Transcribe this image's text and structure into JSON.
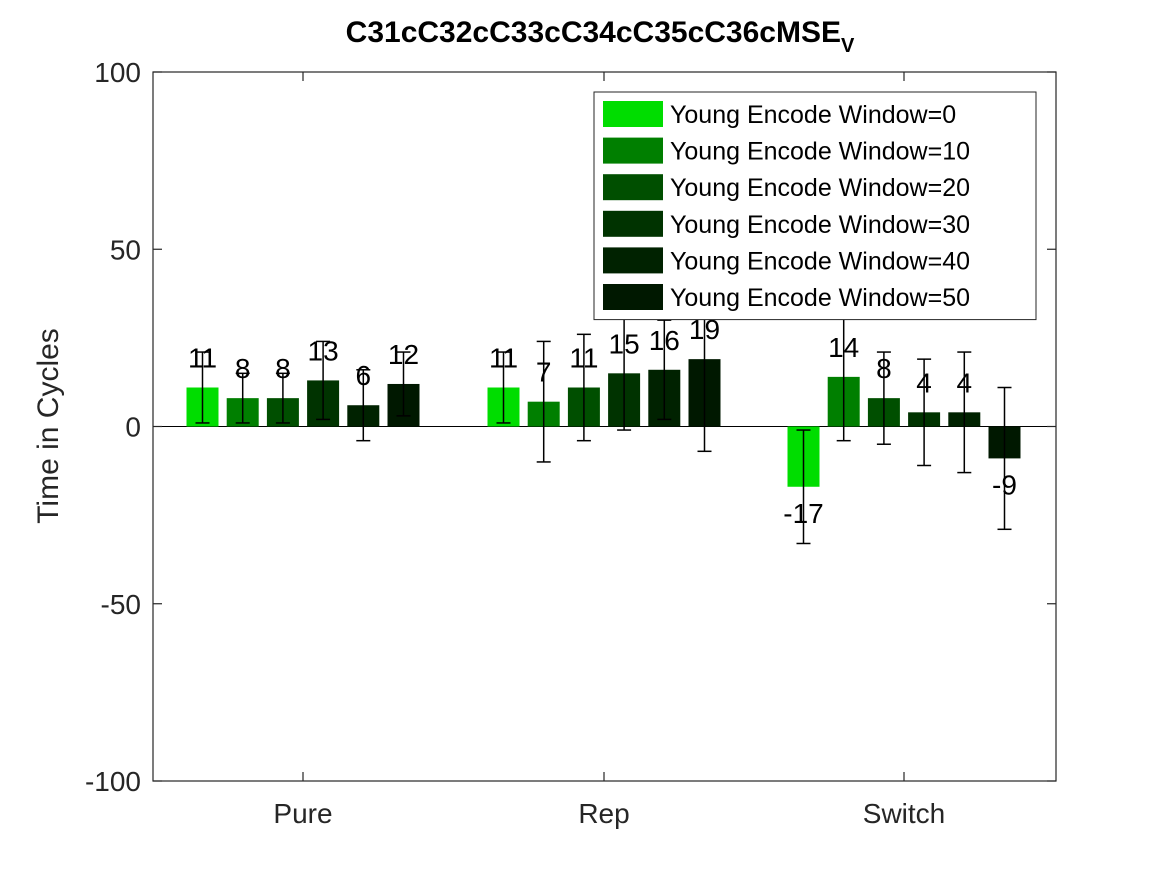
{
  "chart_data": {
    "type": "bar",
    "title": "C31cC32cC33cC34cC35cC36cMSE",
    "title_subscript": "V",
    "xlabel": "",
    "ylabel": "Time in Cycles",
    "ylim": [
      -100,
      100
    ],
    "yticks": [
      "-100",
      "-50",
      "0",
      "50",
      "100"
    ],
    "categories": [
      "Pure",
      "Rep",
      "Switch"
    ],
    "grid": false,
    "legend_position": "top-right",
    "series": [
      {
        "name": "Young Encode Window=0",
        "color": "#00dd00",
        "values": [
          11,
          11,
          -17
        ],
        "errors": [
          10,
          10,
          16
        ],
        "labels": [
          "11",
          "11",
          "-17"
        ]
      },
      {
        "name": "Young Encode Window=10",
        "color": "#007f00",
        "values": [
          8,
          7,
          14
        ],
        "errors": [
          7,
          17,
          18
        ],
        "labels": [
          "8",
          "7",
          "14"
        ]
      },
      {
        "name": "Young Encode Window=20",
        "color": "#004f00",
        "values": [
          8,
          11,
          8
        ],
        "errors": [
          7,
          15,
          13
        ],
        "labels": [
          "8",
          "11",
          "8"
        ]
      },
      {
        "name": "Young Encode Window=30",
        "color": "#003300",
        "values": [
          13,
          15,
          4
        ],
        "errors": [
          11,
          16,
          15
        ],
        "labels": [
          "13",
          "15",
          "4"
        ]
      },
      {
        "name": "Young Encode Window=40",
        "color": "#002200",
        "values": [
          6,
          16,
          4
        ],
        "errors": [
          10,
          14,
          17
        ],
        "labels": [
          "6",
          "16",
          "4"
        ]
      },
      {
        "name": "Young Encode Window=50",
        "color": "#001800",
        "values": [
          12,
          19,
          -9
        ],
        "errors": [
          9,
          26,
          20
        ],
        "labels": [
          "12",
          "19",
          "-9"
        ]
      }
    ]
  }
}
